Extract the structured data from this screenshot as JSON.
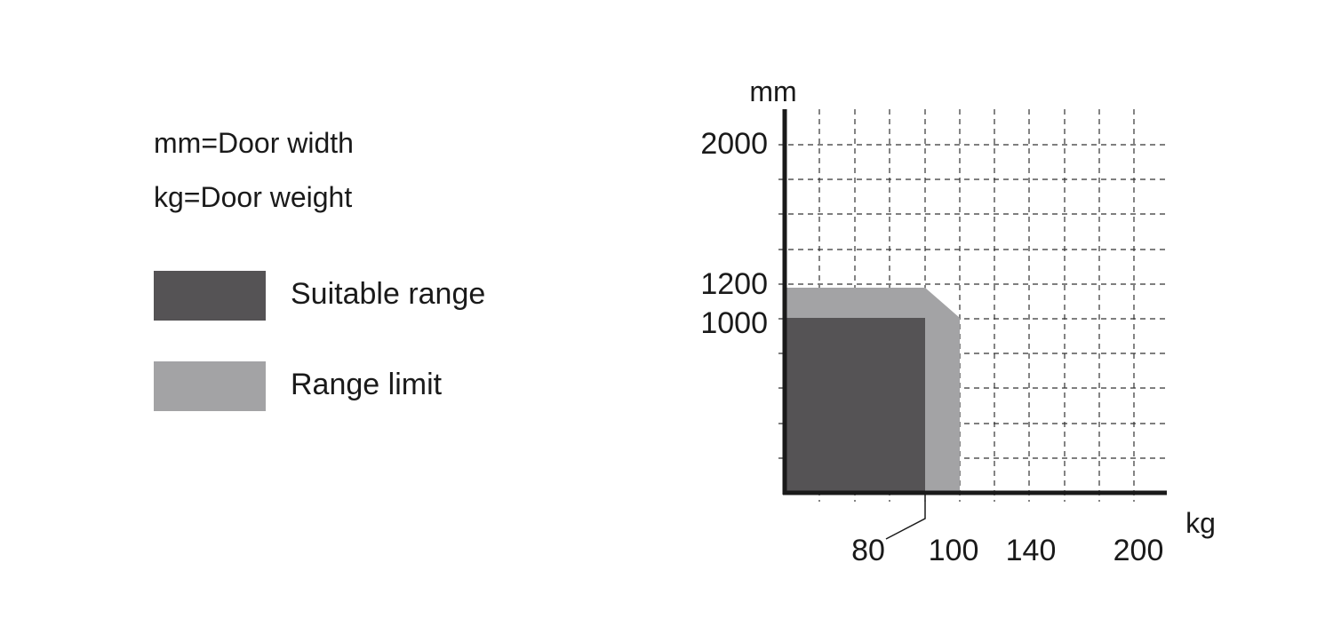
{
  "legend": {
    "notes": [
      "mm=Door width",
      "kg=Door weight"
    ],
    "items": [
      {
        "label": "Suitable range",
        "color": "#555355"
      },
      {
        "label": "Range limit",
        "color": "#a3a3a5"
      }
    ]
  },
  "chart_data": {
    "type": "area",
    "x_unit": "kg",
    "y_unit": "mm",
    "x_ticks": [
      "80",
      "100",
      "140",
      "200"
    ],
    "y_ticks": [
      "2000",
      "1200",
      "1000"
    ],
    "grid": true,
    "series": [
      {
        "name": "Suitable range",
        "color": "#555355",
        "points": [
          [
            0,
            0
          ],
          [
            80,
            0
          ],
          [
            80,
            1000
          ],
          [
            0,
            1000
          ]
        ]
      },
      {
        "name": "Range limit",
        "color": "#a3a3a5",
        "points": [
          [
            0,
            0
          ],
          [
            100,
            0
          ],
          [
            100,
            1000
          ],
          [
            80,
            1200
          ],
          [
            0,
            1200
          ]
        ]
      }
    ]
  }
}
